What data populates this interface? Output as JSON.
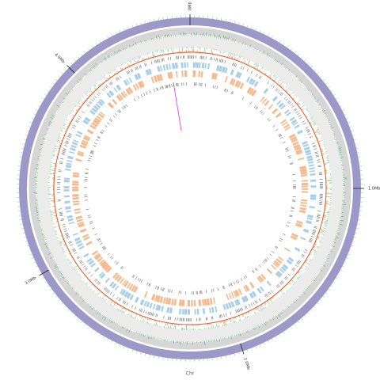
{
  "scale_labels": [
    "0Mb",
    "1.0Mb",
    "2.0Mb",
    "3.0Mb",
    "4.0Mb"
  ],
  "axis_label": "Chr"
}
